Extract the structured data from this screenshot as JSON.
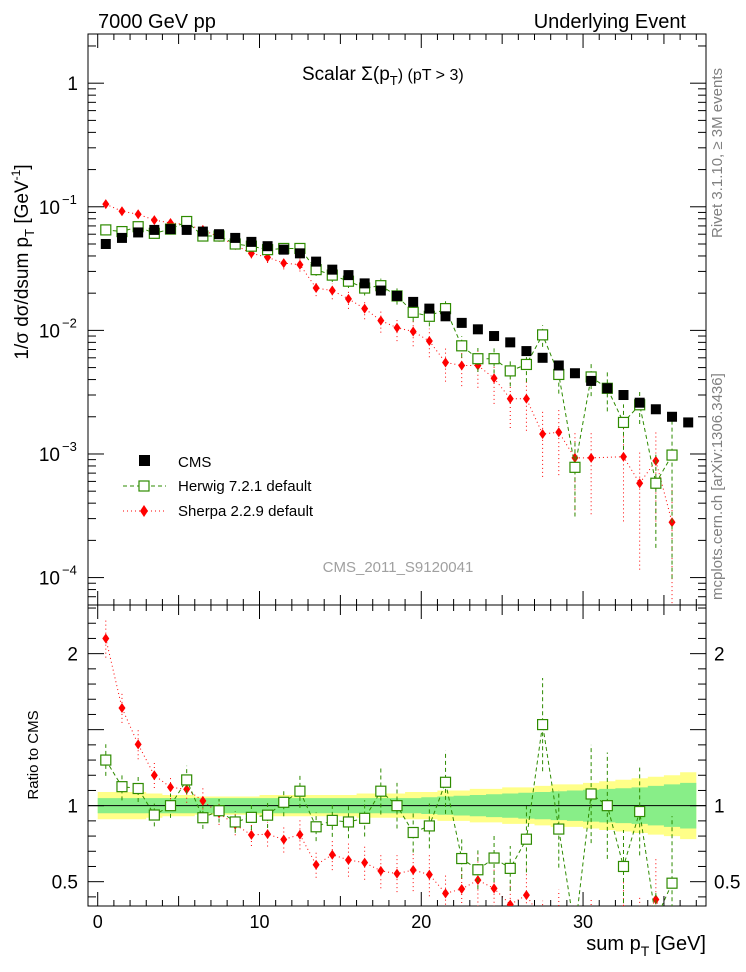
{
  "header": {
    "left": "7000 GeV pp",
    "right": "Underlying Event"
  },
  "side_labels": {
    "rivet": "Rivet 3.1.10, ≥ 3M events",
    "mcplots": "mcplots.cern.ch [arXiv:1306.3436]"
  },
  "chart_data": {
    "type": "scatter",
    "title_main": "Scalar Σ(p",
    "title_sub": "T",
    "title_tail": ") (pT >  3)",
    "watermark": "CMS_2011_S9120041",
    "ylabel_main": "1/σ dσ/dsum p",
    "ylabel_sub": "T",
    "ylabel_unit": " [GeV",
    "ylabel_unit_sup": "-1",
    "ylabel_close": "]",
    "ratio_ylabel": "Ratio to CMS",
    "xlabel_main": "sum p",
    "xlabel_sub": "T",
    "xlabel_unit": " [GeV]",
    "xlim": [
      -0.6,
      37.6
    ],
    "ylim_main": [
      6e-05,
      2.5
    ],
    "ylim_ratio": [
      0.34,
      2.32
    ],
    "x_ticks": [
      0,
      10,
      20,
      30
    ],
    "y_ticks_main": [
      {
        "value": 1,
        "base": "1",
        "exp": ""
      },
      {
        "value": 0.1,
        "base": "10",
        "exp": "−1"
      },
      {
        "value": 0.01,
        "base": "10",
        "exp": "−2"
      },
      {
        "value": 0.001,
        "base": "10",
        "exp": "−3"
      },
      {
        "value": 0.0001,
        "base": "10",
        "exp": "−4"
      }
    ],
    "y_ticks_ratio": [
      {
        "value": 0.5,
        "label": "0.5"
      },
      {
        "value": 1,
        "label": "1"
      },
      {
        "value": 2,
        "label": "2"
      }
    ],
    "x": [
      0.5,
      1.5,
      2.5,
      3.5,
      4.5,
      5.5,
      6.5,
      7.5,
      8.5,
      9.5,
      10.5,
      11.5,
      12.5,
      13.5,
      14.5,
      15.5,
      16.5,
      17.5,
      18.5,
      19.5,
      20.5,
      21.5,
      22.5,
      23.5,
      24.5,
      25.5,
      26.5,
      27.5,
      28.5,
      29.5,
      30.5,
      31.5,
      32.5,
      33.5,
      34.5,
      35.5,
      36.5
    ],
    "series": [
      {
        "name": "CMS",
        "color": "#000000",
        "values": [
          0.05,
          0.056,
          0.062,
          0.065,
          0.066,
          0.065,
          0.063,
          0.06,
          0.056,
          0.052,
          0.048,
          0.045,
          0.042,
          0.036,
          0.031,
          0.028,
          0.024,
          0.021,
          0.019,
          0.017,
          0.015,
          0.013,
          0.0115,
          0.0102,
          0.009,
          0.008,
          0.0068,
          0.006,
          0.0052,
          0.0045,
          0.0039,
          0.0034,
          0.003,
          0.0026,
          0.0023,
          0.002,
          0.0018
        ],
        "band_stat": [
          0.05,
          0.05,
          0.05,
          0.05,
          0.05,
          0.05,
          0.05,
          0.05,
          0.05,
          0.05,
          0.05,
          0.05,
          0.05,
          0.05,
          0.05,
          0.05,
          0.05,
          0.05,
          0.05,
          0.05,
          0.055,
          0.06,
          0.065,
          0.07,
          0.075,
          0.08,
          0.085,
          0.09,
          0.095,
          0.1,
          0.105,
          0.11,
          0.115,
          0.12,
          0.13,
          0.14,
          0.15
        ],
        "band_total": [
          0.09,
          0.09,
          0.09,
          0.08,
          0.07,
          0.07,
          0.06,
          0.06,
          0.06,
          0.06,
          0.07,
          0.07,
          0.07,
          0.07,
          0.07,
          0.07,
          0.08,
          0.08,
          0.08,
          0.09,
          0.09,
          0.1,
          0.1,
          0.11,
          0.11,
          0.12,
          0.12,
          0.13,
          0.14,
          0.14,
          0.15,
          0.16,
          0.17,
          0.18,
          0.19,
          0.2,
          0.22
        ]
      },
      {
        "name": "Herwig 7.2.1 default",
        "color": "#2e8b00",
        "values": [
          0.065,
          0.063,
          0.069,
          0.061,
          0.066,
          0.076,
          0.058,
          0.058,
          0.05,
          0.048,
          0.045,
          0.046,
          0.046,
          0.031,
          0.028,
          0.025,
          0.022,
          0.023,
          0.019,
          0.014,
          0.013,
          0.015,
          0.0075,
          0.0059,
          0.0059,
          0.0047,
          0.0053,
          0.0092,
          0.0044,
          0.00078,
          0.0042,
          0.0034,
          0.0018,
          0.0025,
          0.00058,
          0.00098
        ],
        "rel_err": [
          0.08,
          0.08,
          0.08,
          0.08,
          0.08,
          0.08,
          0.08,
          0.08,
          0.08,
          0.09,
          0.09,
          0.09,
          0.1,
          0.11,
          0.12,
          0.12,
          0.13,
          0.14,
          0.15,
          0.16,
          0.17,
          0.18,
          0.2,
          0.22,
          0.24,
          0.25,
          0.28,
          0.2,
          0.3,
          0.6,
          0.3,
          0.35,
          0.4,
          0.3,
          0.7,
          0.9
        ]
      },
      {
        "name": "Sherpa 2.2.9 default",
        "color": "#ff0000",
        "values": [
          0.105,
          0.092,
          0.087,
          0.078,
          0.074,
          0.072,
          0.065,
          0.057,
          0.049,
          0.042,
          0.039,
          0.035,
          0.034,
          0.022,
          0.021,
          0.018,
          0.015,
          0.012,
          0.0105,
          0.0098,
          0.0082,
          0.0055,
          0.0052,
          0.0052,
          0.0041,
          0.0028,
          0.0028,
          0.00145,
          0.0015,
          0.00093,
          0.00093,
          0.00095,
          0.00058,
          0.00088,
          0.00028
        ],
        "rel_err": [
          0.06,
          0.06,
          0.07,
          0.07,
          0.07,
          0.08,
          0.08,
          0.08,
          0.08,
          0.09,
          0.1,
          0.11,
          0.12,
          0.14,
          0.15,
          0.17,
          0.18,
          0.2,
          0.22,
          0.24,
          0.26,
          0.3,
          0.32,
          0.34,
          0.38,
          0.42,
          0.45,
          0.55,
          0.55,
          0.65,
          0.65,
          0.7,
          0.8,
          0.7,
          0.95
        ],
        "x_override": [
          0.5,
          1.5,
          2.5,
          3.5,
          4.5,
          5.5,
          6.5,
          7.5,
          8.5,
          9.5,
          10.5,
          11.5,
          12.5,
          13.5,
          14.5,
          15.5,
          16.5,
          17.5,
          18.5,
          19.5,
          20.5,
          21.5,
          22.5,
          23.5,
          24.5,
          25.5,
          26.5,
          27.5,
          28.5,
          29.5,
          30.5,
          32.5,
          33.5,
          34.5,
          35.5
        ]
      }
    ],
    "legend": [
      {
        "label": "CMS",
        "marker": "filled-square"
      },
      {
        "label": "Herwig 7.2.1 default",
        "marker": "open-square"
      },
      {
        "label": "Sherpa 2.2.9 default",
        "marker": "diamond"
      }
    ],
    "band_colors": {
      "total": "#ffff88",
      "stat": "#88ee88"
    }
  }
}
